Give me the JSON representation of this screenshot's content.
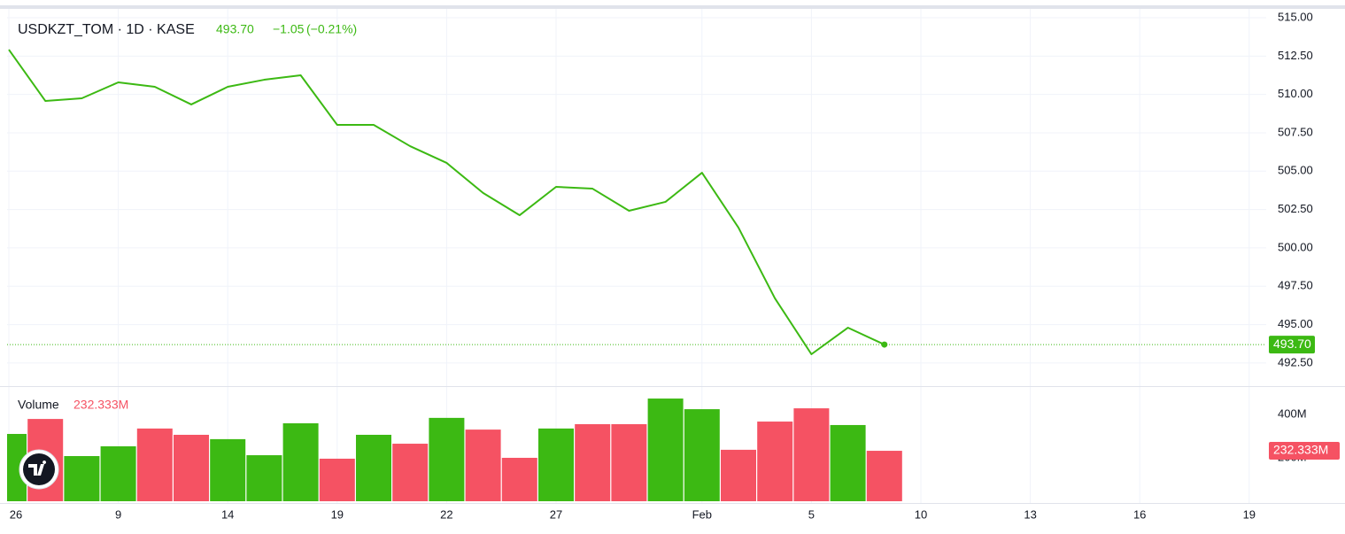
{
  "chart_data": [
    {
      "type": "line",
      "header": {
        "symbol": "USDKZT_TOM · 1D · KASE",
        "last": "493.70",
        "change": "−1.05",
        "change_pct": "(−0.21%)"
      },
      "categories": [
        "26",
        null,
        null,
        "9",
        null,
        null,
        "14",
        null,
        null,
        "19",
        null,
        null,
        "22",
        null,
        null,
        "27",
        null,
        null,
        null,
        "Feb",
        null,
        null,
        "5",
        null,
        null,
        "10",
        null,
        null,
        "13",
        null,
        null,
        "16",
        null,
        null,
        "19"
      ],
      "series": [
        {
          "color": "#3cb913",
          "values": [
            512.92,
            509.58,
            509.75,
            510.79,
            510.5,
            509.35,
            510.5,
            510.96,
            511.25,
            508.02,
            508.02,
            506.63,
            505.54,
            503.58,
            502.13,
            503.98,
            503.86,
            502.42,
            503.0,
            504.9,
            501.32,
            496.71,
            493.07,
            494.8,
            493.7,
            null,
            null,
            null,
            null,
            null,
            null,
            null,
            null,
            null,
            null
          ]
        }
      ],
      "ylim": [
        491.05,
        515.58
      ],
      "yticks": [
        {
          "value": 492.5,
          "label": "492.50"
        },
        {
          "value": 495,
          "label": "495.00"
        },
        {
          "value": 497.5,
          "label": "497.50"
        },
        {
          "value": 500,
          "label": "500.00"
        },
        {
          "value": 502.5,
          "label": "502.50"
        },
        {
          "value": 505,
          "label": "505.00"
        },
        {
          "value": 507.5,
          "label": "507.50"
        },
        {
          "value": 510,
          "label": "510.00"
        },
        {
          "value": 512.5,
          "label": "512.50"
        },
        {
          "value": 515,
          "label": "515.00"
        }
      ],
      "grid": true
    },
    {
      "type": "bar",
      "title": "Volume",
      "values": [
        310000000,
        379000000,
        208000000,
        253000000,
        335000000,
        306000000,
        286000000,
        212000000,
        359000000,
        196000000,
        306000000,
        265000000,
        384000000,
        330000000,
        200000000,
        335000000,
        355000000,
        355000000,
        473000000,
        424000000,
        237000000,
        367000000,
        428000000,
        351000000,
        232333000,
        null,
        null,
        null,
        null,
        null,
        null,
        null,
        null,
        null,
        null
      ],
      "value_labels": [
        null,
        null,
        null,
        null,
        null,
        null,
        null,
        null,
        null,
        null,
        null,
        null,
        null,
        null,
        null,
        null,
        null,
        null,
        null,
        null,
        null,
        null,
        null,
        null,
        "232.333M",
        null,
        null,
        null,
        null,
        null,
        null,
        null,
        null,
        null,
        null
      ],
      "colors": [
        "#3cb913",
        "#f55263",
        "#3cb913",
        "#3cb913",
        "#f55263",
        "#f55263",
        "#3cb913",
        "#3cb913",
        "#3cb913",
        "#f55263",
        "#3cb913",
        "#f55263",
        "#3cb913",
        "#f55263",
        "#f55263",
        "#3cb913",
        "#f55263",
        "#f55263",
        "#3cb913",
        "#3cb913",
        "#f55263",
        "#f55263",
        "#f55263",
        "#3cb913",
        "#f55263",
        null,
        null,
        null,
        null,
        null,
        null,
        null,
        null,
        null,
        null
      ],
      "ylim": [
        0,
        514000000
      ],
      "yticks": [
        {
          "value": 200000000,
          "label": "200M"
        },
        {
          "value": 400000000,
          "label": "400M"
        }
      ]
    }
  ]
}
